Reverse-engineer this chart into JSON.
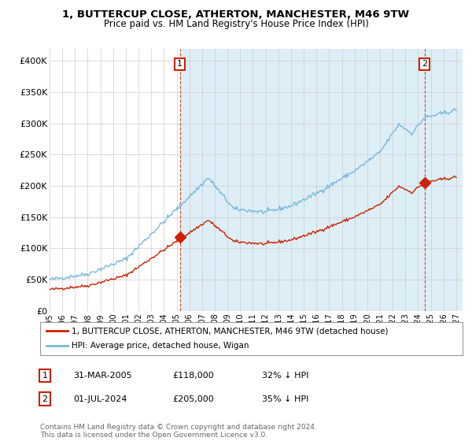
{
  "title1": "1, BUTTERCUP CLOSE, ATHERTON, MANCHESTER, M46 9TW",
  "title2": "Price paid vs. HM Land Registry's House Price Index (HPI)",
  "ylabel_ticks": [
    "£0",
    "£50K",
    "£100K",
    "£150K",
    "£200K",
    "£250K",
    "£300K",
    "£350K",
    "£400K"
  ],
  "ytick_values": [
    0,
    50000,
    100000,
    150000,
    200000,
    250000,
    300000,
    350000,
    400000
  ],
  "ylim": [
    0,
    420000
  ],
  "xlim_start": 1995.0,
  "xlim_end": 2027.5,
  "sale1_x": 2005.25,
  "sale1_y": 118000,
  "sale1_label": "1",
  "sale2_x": 2024.5,
  "sale2_y": 205000,
  "sale2_label": "2",
  "hpi_color": "#7ab8d9",
  "hpi_fill_color": "#ddeef7",
  "sale_color": "#cc2200",
  "legend_line1": "1, BUTTERCUP CLOSE, ATHERTON, MANCHESTER, M46 9TW (detached house)",
  "legend_line2": "HPI: Average price, detached house, Wigan",
  "table_row1_num": "1",
  "table_row1_date": "31-MAR-2005",
  "table_row1_price": "£118,000",
  "table_row1_hpi": "32% ↓ HPI",
  "table_row2_num": "2",
  "table_row2_date": "01-JUL-2024",
  "table_row2_price": "£205,000",
  "table_row2_hpi": "35% ↓ HPI",
  "footer": "Contains HM Land Registry data © Crown copyright and database right 2024.\nThis data is licensed under the Open Government Licence v3.0.",
  "background_color": "#ffffff",
  "grid_color": "#cccccc",
  "xtick_years": [
    1995,
    1996,
    1997,
    1998,
    1999,
    2000,
    2001,
    2002,
    2003,
    2004,
    2005,
    2006,
    2007,
    2008,
    2009,
    2010,
    2011,
    2012,
    2013,
    2014,
    2015,
    2016,
    2017,
    2018,
    2019,
    2020,
    2021,
    2022,
    2023,
    2024,
    2025,
    2026,
    2027
  ]
}
